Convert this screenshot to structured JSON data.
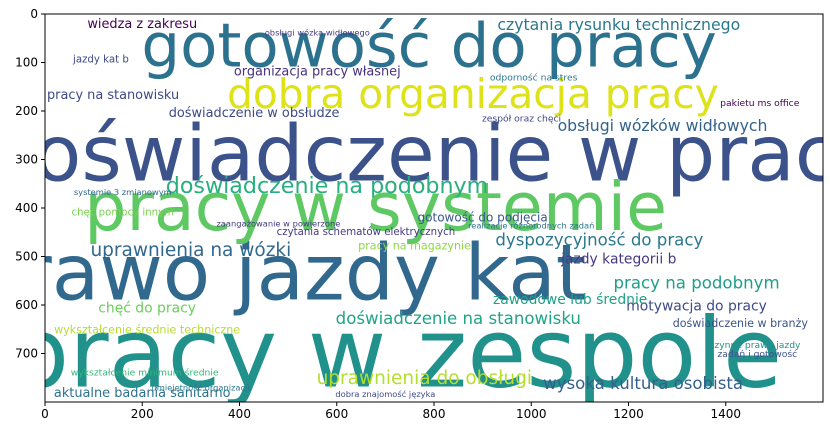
{
  "chart_data": {
    "type": "wordcloud",
    "title": "",
    "xlabel": "",
    "ylabel": "",
    "xlim": [
      0,
      1600
    ],
    "ylim": [
      800,
      0
    ],
    "xticks": [
      0,
      200,
      400,
      600,
      800,
      1000,
      1200,
      1400
    ],
    "yticks": [
      0,
      100,
      200,
      300,
      400,
      500,
      600,
      700
    ],
    "grid": false,
    "words": [
      {
        "text": "doświadczenie w pracy",
        "x": 800,
        "y": 290,
        "size": 84,
        "color": "#3b528b"
      },
      {
        "text": "pracy w zespole",
        "x": 720,
        "y": 700,
        "size": 104,
        "color": "#21918c"
      },
      {
        "text": "prawo jazdy kat",
        "x": 480,
        "y": 535,
        "size": 84,
        "color": "#31688e"
      },
      {
        "text": "pracy w systemie",
        "x": 680,
        "y": 398,
        "size": 72,
        "color": "#5ec962"
      },
      {
        "text": "gotowość do pracy",
        "x": 790,
        "y": 66,
        "size": 66,
        "color": "#2c728e"
      },
      {
        "text": "dobra organizacja pracy",
        "x": 880,
        "y": 165,
        "size": 44,
        "color": "#dde318"
      },
      {
        "text": "doświadczenie na podobnym",
        "x": 580,
        "y": 355,
        "size": 24,
        "color": "#29af7f"
      },
      {
        "text": "uprawnienia na wózki",
        "x": 300,
        "y": 488,
        "size": 20,
        "color": "#31688e"
      },
      {
        "text": "uprawnienia do obsługi",
        "x": 780,
        "y": 752,
        "size": 20,
        "color": "#b5de2b"
      },
      {
        "text": "doświadczenie na stanowisku",
        "x": 850,
        "y": 628,
        "size": 18,
        "color": "#20a486"
      },
      {
        "text": "dyspozycyjność do pracy",
        "x": 1140,
        "y": 466,
        "size": 18,
        "color": "#2a788e"
      },
      {
        "text": "pracy na podobnym",
        "x": 1340,
        "y": 555,
        "size": 18,
        "color": "#1f9e89"
      },
      {
        "text": "wysoka kultura osobista",
        "x": 1230,
        "y": 762,
        "size": 18,
        "color": "#355f8d"
      },
      {
        "text": "czytania rysunku technicznego",
        "x": 1180,
        "y": 22,
        "size": 17,
        "color": "#2a788e"
      },
      {
        "text": "obsługi wózków widłowych",
        "x": 1270,
        "y": 230,
        "size": 17,
        "color": "#33638d"
      },
      {
        "text": "motywacja do pracy",
        "x": 1340,
        "y": 603,
        "size": 15,
        "color": "#3e4989"
      },
      {
        "text": "jazdy kategorii b",
        "x": 1180,
        "y": 506,
        "size": 15,
        "color": "#443a83"
      },
      {
        "text": "zawodowe lub średnie",
        "x": 1080,
        "y": 590,
        "size": 15,
        "color": "#1fa188"
      },
      {
        "text": "chęć do pracy",
        "x": 210,
        "y": 607,
        "size": 15,
        "color": "#6ccd5a"
      },
      {
        "text": "doświadczenie w obsłudze",
        "x": 430,
        "y": 205,
        "size": 14,
        "color": "#3e4989"
      },
      {
        "text": "organizacja pracy własnej",
        "x": 560,
        "y": 120,
        "size": 14,
        "color": "#46327e"
      },
      {
        "text": "aktualne badania sanitarno",
        "x": 200,
        "y": 782,
        "size": 14,
        "color": "#2c728e"
      },
      {
        "text": "pracy na stanowisku",
        "x": 140,
        "y": 168,
        "size": 14,
        "color": "#3e4989"
      },
      {
        "text": "wiedza z zakresu",
        "x": 200,
        "y": 22,
        "size": 14,
        "color": "#440154"
      },
      {
        "text": "gotowość do podjęcia",
        "x": 900,
        "y": 420,
        "size": 13,
        "color": "#38588c"
      },
      {
        "text": "pracy na magazynie",
        "x": 760,
        "y": 478,
        "size": 12,
        "color": "#8fd744"
      },
      {
        "text": "doświadczenie w branży",
        "x": 1430,
        "y": 638,
        "size": 12,
        "color": "#3b528b"
      },
      {
        "text": "wykształcenie średnie techniczne",
        "x": 210,
        "y": 652,
        "size": 12,
        "color": "#b5de2b"
      },
      {
        "text": "czytania schematów elektrycznych",
        "x": 660,
        "y": 450,
        "size": 11,
        "color": "#443a83"
      },
      {
        "text": "jazdy kat b",
        "x": 115,
        "y": 95,
        "size": 11,
        "color": "#3e4989"
      },
      {
        "text": "chęć pomocy innym",
        "x": 160,
        "y": 410,
        "size": 11,
        "color": "#7ad151"
      },
      {
        "text": "odporność na stres",
        "x": 1005,
        "y": 132,
        "size": 10,
        "color": "#2a788e"
      },
      {
        "text": "zadań i gotowość",
        "x": 1465,
        "y": 702,
        "size": 10,
        "color": "#3b528b"
      },
      {
        "text": "czynne prawo jazdy",
        "x": 1460,
        "y": 684,
        "size": 10,
        "color": "#21918c"
      },
      {
        "text": "pakietu ms office",
        "x": 1470,
        "y": 185,
        "size": 10,
        "color": "#440154"
      },
      {
        "text": "wykształcenie minimum średnie",
        "x": 205,
        "y": 740,
        "size": 10,
        "color": "#35b779"
      },
      {
        "text": "systemie 3 zmianowym",
        "x": 160,
        "y": 367,
        "size": 9,
        "color": "#31688e"
      },
      {
        "text": "zaangażowanie w powierzone",
        "x": 480,
        "y": 432,
        "size": 9,
        "color": "#443a83"
      },
      {
        "text": "dobra znajomość języka",
        "x": 700,
        "y": 784,
        "size": 9,
        "color": "#3e4989"
      },
      {
        "text": "realizacje różnorodnych zadań",
        "x": 1000,
        "y": 436,
        "size": 9,
        "color": "#2c728e"
      },
      {
        "text": "zespół oraz chęci",
        "x": 980,
        "y": 216,
        "size": 10,
        "color": "#3e4989"
      },
      {
        "text": "umiejętność organizacji",
        "x": 320,
        "y": 770,
        "size": 9,
        "color": "#2a788e"
      },
      {
        "text": "obsługi wózka widłowego",
        "x": 560,
        "y": 38,
        "size": 9,
        "color": "#443a83"
      }
    ]
  }
}
